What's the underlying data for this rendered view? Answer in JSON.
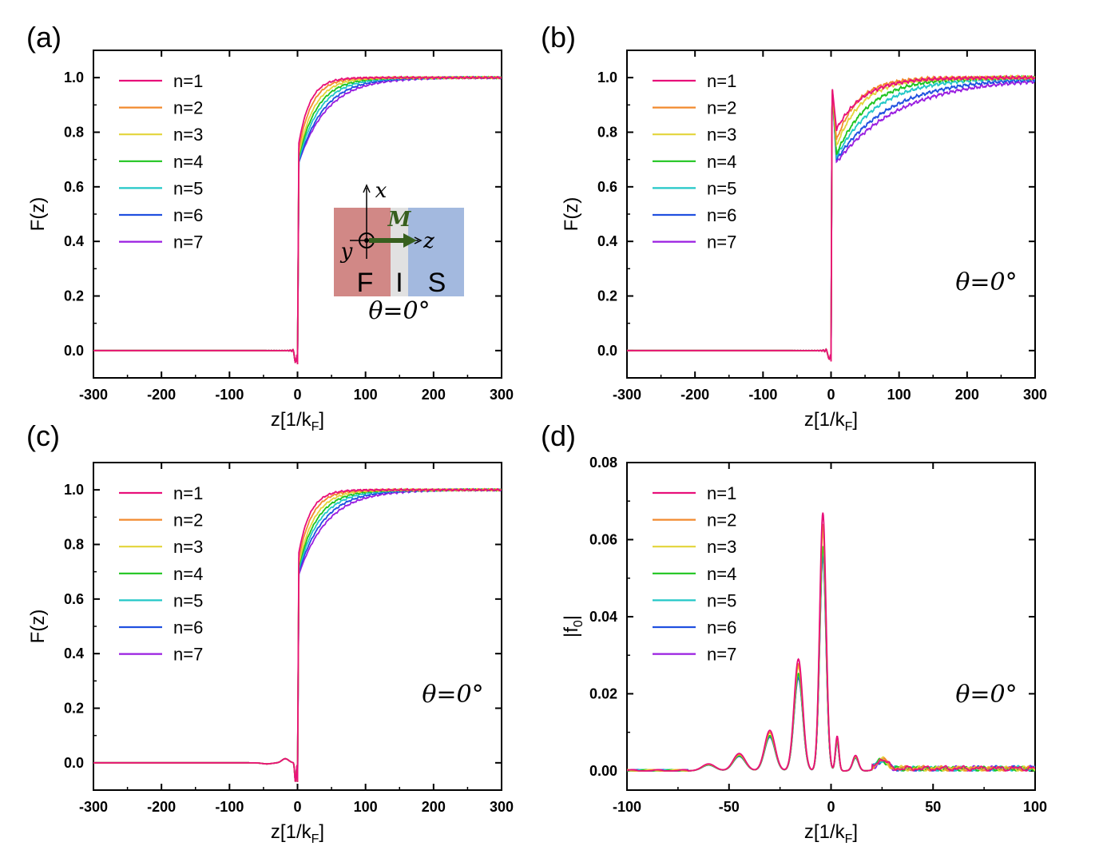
{
  "figure": {
    "legend_labels": [
      "n=1",
      "n=2",
      "n=3",
      "n=4",
      "n=5",
      "n=6",
      "n=7"
    ],
    "series_colors": [
      "#e8107a",
      "#f28a2e",
      "#e3d43a",
      "#1ec41e",
      "#22c7c7",
      "#2050e0",
      "#9a1ee0"
    ],
    "inset": {
      "labels": {
        "F": "F",
        "I": "I",
        "S": "S",
        "axis_x": "x",
        "axis_y": "y",
        "axis_z": "z",
        "magnetization": "M"
      },
      "colors": {
        "F": "#d18886",
        "I": "#e1e1e1",
        "S": "#a3b9df",
        "arrow": "#375f1e"
      }
    }
  },
  "chart_data": [
    {
      "panel": "(a)",
      "type": "line",
      "title": "",
      "xlabel": "z[1/k",
      "xlabel_sub": "F",
      "xlabel_suffix": "]",
      "ylabel": "F(z)",
      "xlim": [
        -300,
        300
      ],
      "ylim": [
        -0.1,
        1.1
      ],
      "xticks": [
        -300,
        -200,
        -100,
        0,
        100,
        200,
        300
      ],
      "yticks": [
        0.0,
        0.2,
        0.4,
        0.6,
        0.8,
        1.0
      ],
      "xtick_labels": [
        "-300",
        "-200",
        "-100",
        "0",
        "100",
        "200",
        "300"
      ],
      "ytick_labels": [
        "0.0",
        "0.2",
        "0.4",
        "0.6",
        "0.8",
        "1.0"
      ],
      "annotation": "θ=0°",
      "model": {
        "kind": "step",
        "amp": [
          0.76,
          0.74,
          0.72,
          0.71,
          0.7,
          0.69,
          0.69
        ],
        "tau": [
          17,
          20,
          24,
          28,
          32,
          37,
          42
        ],
        "dip": -0.05,
        "dip_pos": -3
      },
      "series": [
        {
          "name": "n=1",
          "x": [
            -300,
            -10,
            -3,
            0,
            2,
            10,
            25,
            50,
            100,
            200,
            300
          ],
          "y": [
            0.0,
            0.0,
            -0.05,
            0.3,
            0.76,
            0.87,
            0.94,
            0.97,
            0.99,
            0.99,
            0.99
          ]
        },
        {
          "name": "n=4",
          "x": [
            -300,
            -10,
            -3,
            0,
            2,
            10,
            25,
            50,
            100,
            200,
            300
          ],
          "y": [
            0.0,
            0.0,
            -0.05,
            0.3,
            0.71,
            0.79,
            0.87,
            0.92,
            0.97,
            0.99,
            0.99
          ]
        },
        {
          "name": "n=7",
          "x": [
            -300,
            -10,
            -3,
            0,
            2,
            10,
            25,
            50,
            100,
            200,
            300
          ],
          "y": [
            0.0,
            0.0,
            -0.05,
            0.3,
            0.69,
            0.75,
            0.83,
            0.89,
            0.95,
            0.98,
            0.99
          ]
        }
      ]
    },
    {
      "panel": "(b)",
      "type": "line",
      "title": "",
      "xlabel": "z[1/k",
      "xlabel_sub": "F",
      "xlabel_suffix": "]",
      "ylabel": "F(z)",
      "xlim": [
        -300,
        300
      ],
      "ylim": [
        -0.1,
        1.1
      ],
      "xticks": [
        -300,
        -200,
        -100,
        0,
        100,
        200,
        300
      ],
      "yticks": [
        0.0,
        0.2,
        0.4,
        0.6,
        0.8,
        1.0
      ],
      "xtick_labels": [
        "-300",
        "-200",
        "-100",
        "0",
        "100",
        "200",
        "300"
      ],
      "ytick_labels": [
        "0.0",
        "0.2",
        "0.4",
        "0.6",
        "0.8",
        "1.0"
      ],
      "annotation": "θ=0°",
      "model": {
        "kind": "spike",
        "peak": 0.97,
        "trough": [
          0.81,
          0.77,
          0.75,
          0.72,
          0.71,
          0.7,
          0.69
        ],
        "tau": [
          40,
          32,
          38,
          48,
          60,
          80,
          95
        ],
        "dip": -0.04,
        "dip_pos": -3
      },
      "series": [
        {
          "name": "n=1",
          "x": [
            -300,
            -3,
            0,
            2,
            8,
            50,
            100,
            200,
            300
          ],
          "y": [
            0.0,
            -0.04,
            0.5,
            0.97,
            0.81,
            0.93,
            0.97,
            0.99,
            0.99
          ]
        },
        {
          "name": "n=7",
          "x": [
            -300,
            -3,
            0,
            2,
            8,
            50,
            100,
            200,
            300
          ],
          "y": [
            0.0,
            -0.04,
            0.5,
            0.97,
            0.69,
            0.81,
            0.88,
            0.95,
            0.98
          ]
        }
      ]
    },
    {
      "panel": "(c)",
      "type": "line",
      "title": "",
      "xlabel": "z[1/k",
      "xlabel_sub": "F",
      "xlabel_suffix": "]",
      "ylabel": "F(z)",
      "xlim": [
        -300,
        300
      ],
      "ylim": [
        -0.1,
        1.1
      ],
      "xticks": [
        -300,
        -200,
        -100,
        0,
        100,
        200,
        300
      ],
      "yticks": [
        0.0,
        0.2,
        0.4,
        0.6,
        0.8,
        1.0
      ],
      "xtick_labels": [
        "-300",
        "-200",
        "-100",
        "0",
        "100",
        "200",
        "300"
      ],
      "ytick_labels": [
        "0.0",
        "0.2",
        "0.4",
        "0.6",
        "0.8",
        "1.0"
      ],
      "annotation": "θ=0°",
      "model": {
        "kind": "stepwave",
        "amp": [
          0.77,
          0.75,
          0.73,
          0.72,
          0.71,
          0.7,
          0.69
        ],
        "tau": [
          17,
          20,
          24,
          28,
          32,
          37,
          42
        ],
        "bump": 0.015,
        "bump_pos": -18,
        "dip": -0.07,
        "dip_pos": -3
      },
      "series": [
        {
          "name": "n=1",
          "x": [
            -300,
            -50,
            -18,
            -3,
            0,
            3,
            10,
            25,
            50,
            100,
            200,
            300
          ],
          "y": [
            0.0,
            0.0,
            0.015,
            -0.07,
            0.3,
            0.77,
            0.88,
            0.95,
            0.98,
            0.99,
            1.0,
            1.0
          ]
        },
        {
          "name": "n=7",
          "x": [
            -300,
            -50,
            -18,
            -3,
            0,
            3,
            10,
            25,
            50,
            100,
            200,
            300
          ],
          "y": [
            0.0,
            0.0,
            0.015,
            -0.07,
            0.3,
            0.69,
            0.75,
            0.83,
            0.89,
            0.95,
            0.98,
            0.99
          ]
        }
      ]
    },
    {
      "panel": "(d)",
      "type": "line",
      "title": "",
      "xlabel": "z[1/k",
      "xlabel_sub": "F",
      "xlabel_suffix": "]",
      "ylabel": "|f",
      "ylabel_sub": "0",
      "ylabel_suffix": "|",
      "xlim": [
        -100,
        100
      ],
      "ylim": [
        -0.005,
        0.08
      ],
      "xticks": [
        -100,
        -50,
        0,
        50,
        100
      ],
      "yticks": [
        0.0,
        0.02,
        0.04,
        0.06,
        0.08
      ],
      "xtick_labels": [
        "-100",
        "-50",
        "0",
        "50",
        "100"
      ],
      "ytick_labels": [
        "0.00",
        "0.02",
        "0.04",
        "0.06",
        "0.08"
      ],
      "annotation": "θ=0°",
      "model": {
        "kind": "peaks",
        "scale": [
          1.0,
          0.956,
          0.93,
          0.87,
          0.86,
          0.84,
          0.83
        ],
        "peaks": [
          [
            -4,
            0.067,
            2.2
          ],
          [
            -16,
            0.029,
            3.0
          ],
          [
            -30,
            0.0105,
            3.6
          ],
          [
            -45,
            0.0045,
            4.2
          ],
          [
            -60,
            0.0018,
            4.5
          ],
          [
            3,
            0.009,
            1.2
          ],
          [
            12,
            0.004,
            2.0
          ],
          [
            25,
            0.0025,
            3.5
          ]
        ]
      },
      "series": [
        {
          "name": "n=1",
          "x": [
            -100,
            -60,
            -45,
            -30,
            -16,
            -4,
            3,
            12,
            25,
            50,
            100
          ],
          "y": [
            0.0,
            0.0018,
            0.0045,
            0.0105,
            0.029,
            0.067,
            0.009,
            0.004,
            0.0025,
            0.001,
            0.001
          ]
        },
        {
          "name": "n=7",
          "x": [
            -100,
            -60,
            -45,
            -30,
            -16,
            -4,
            3,
            12,
            25,
            50,
            100
          ],
          "y": [
            0.0,
            0.0015,
            0.0037,
            0.0087,
            0.024,
            0.0556,
            0.0075,
            0.0033,
            0.002,
            0.001,
            0.001
          ]
        }
      ]
    }
  ]
}
